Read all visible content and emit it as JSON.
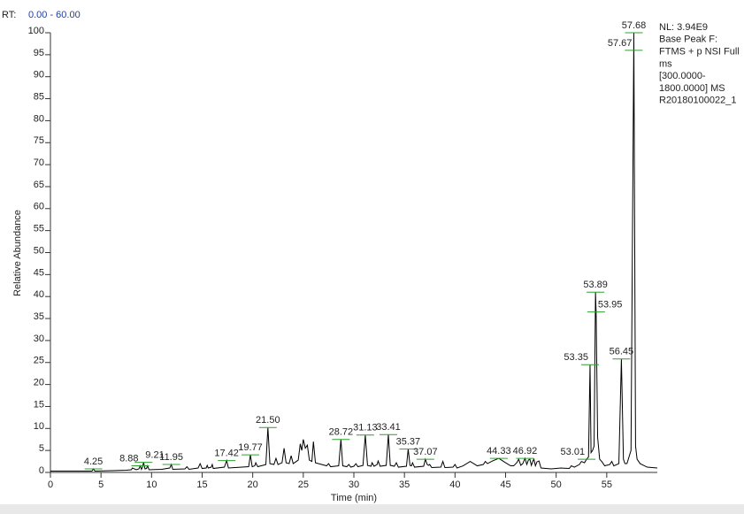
{
  "chart_data": {
    "type": "line",
    "rt_label": "RT:",
    "rt_range": "0.00 - 60.00",
    "info": [
      "NL: 3.94E9",
      "Base Peak F:",
      "FTMS + p NSI Full",
      "ms",
      "[300.0000-",
      "1800.0000]  MS",
      "R20180100022_1"
    ],
    "xlabel": "Time (min)",
    "ylabel": "Relative Abundance",
    "color": "#000000",
    "annotation_color": "#2ca02c",
    "xlim": [
      0,
      60
    ],
    "ylim": [
      0,
      100
    ],
    "xticks": [
      0,
      5,
      10,
      15,
      20,
      25,
      30,
      35,
      40,
      45,
      50,
      55
    ],
    "yticks": [
      0,
      5,
      10,
      15,
      20,
      25,
      30,
      35,
      40,
      45,
      50,
      55,
      60,
      65,
      70,
      75,
      80,
      85,
      90,
      95,
      100
    ],
    "x": [
      0,
      3,
      4.1,
      4.25,
      4.4,
      6,
      7.5,
      8.0,
      8.1,
      8.5,
      8.75,
      8.88,
      9.0,
      9.1,
      9.21,
      9.35,
      9.5,
      9.6,
      9.75,
      11,
      11.8,
      11.95,
      12.1,
      13.3,
      13.5,
      13.7,
      14.6,
      14.8,
      15.0,
      15.4,
      15.5,
      15.6,
      15.9,
      16.0,
      16.1,
      17.2,
      17.42,
      17.6,
      19.6,
      19.77,
      19.95,
      20.2,
      20.3,
      20.5,
      21.3,
      21.5,
      21.7,
      22.1,
      22.3,
      22.5,
      22.9,
      23.1,
      23.3,
      23.6,
      23.8,
      24.0,
      24.5,
      24.7,
      24.85,
      25.0,
      25.2,
      25.4,
      25.6,
      25.85,
      26.0,
      26.2,
      27.3,
      27.5,
      27.7,
      28.5,
      28.72,
      28.9,
      29.3,
      29.5,
      29.7,
      30.0,
      30.2,
      30.4,
      30.9,
      31.13,
      31.35,
      31.7,
      31.8,
      32.0,
      32.3,
      32.4,
      32.6,
      33.2,
      33.41,
      33.6,
      34.0,
      34.2,
      34.4,
      35.2,
      35.37,
      35.55,
      35.7,
      35.8,
      36,
      36.9,
      37.07,
      37.25,
      37.4,
      37.5,
      37.7,
      38.6,
      38.8,
      39.0,
      39.8,
      40.0,
      40.2,
      40.8,
      41.5,
      42.2,
      42.8,
      43.0,
      43.2,
      43.7,
      44.33,
      45.0,
      45.5,
      45.8,
      46.1,
      46.3,
      46.5,
      46.7,
      46.92,
      47.1,
      47.25,
      47.4,
      47.55,
      47.7,
      47.8,
      47.95,
      48.1,
      48.3,
      48.5,
      49.5,
      50.5,
      51.3,
      51.5,
      51.8,
      52.3,
      52.5,
      52.8,
      53.01,
      53.2,
      53.35,
      53.45,
      53.6,
      53.75,
      53.89,
      53.95,
      54.1,
      54.3,
      54.5,
      54.8,
      55.3,
      55.5,
      55.7,
      56.2,
      56.45,
      56.65,
      56.8,
      57.0,
      57.4,
      57.67,
      57.68,
      57.85,
      58.0,
      58.3,
      59.0,
      60
    ],
    "values": [
      0.3,
      0.3,
      0.3,
      0.8,
      0.3,
      0.4,
      0.5,
      0.6,
      1.0,
      0.6,
      0.8,
      1.5,
      0.7,
      1.2,
      2.3,
      0.8,
      0.9,
      1.5,
      0.6,
      0.7,
      1.0,
      1.8,
      0.7,
      0.8,
      1.3,
      0.7,
      1.0,
      2.0,
      0.9,
      1.0,
      1.6,
      1.0,
      1.2,
      1.8,
      0.9,
      1.2,
      2.7,
      1.0,
      1.3,
      4.0,
      1.3,
      1.5,
      2.2,
      1.3,
      1.8,
      10.2,
      2.0,
      1.8,
      3.2,
      1.8,
      2.2,
      5.5,
      2.2,
      2.0,
      3.8,
      2.0,
      2.8,
      6.5,
      5.0,
      7.5,
      5.5,
      6.2,
      2.8,
      2.5,
      7.0,
      2.2,
      1.5,
      2.0,
      1.3,
      1.5,
      7.5,
      1.5,
      1.3,
      1.8,
      1.2,
      1.4,
      2.0,
      1.3,
      1.6,
      8.5,
      1.6,
      1.4,
      2.2,
      1.4,
      1.8,
      2.6,
      1.4,
      1.6,
      8.6,
      1.6,
      1.4,
      2.2,
      1.2,
      1.4,
      5.3,
      1.6,
      1.5,
      2.2,
      1.2,
      1.4,
      3.0,
      1.8,
      1.6,
      1.8,
      1.1,
      1.2,
      2.5,
      1.1,
      1.2,
      1.8,
      1.0,
      1.5,
      2.5,
      1.5,
      1.8,
      2.5,
      2.0,
      2.6,
      3.2,
      2.2,
      1.5,
      1.5,
      2.2,
      3.0,
      1.6,
      2.0,
      3.2,
      1.8,
      2.8,
      3.0,
      1.6,
      2.6,
      3.0,
      1.5,
      2.4,
      2.6,
      1.0,
      0.8,
      1.0,
      0.9,
      1.5,
      1.2,
      1.8,
      2.5,
      2.2,
      3.0,
      3.5,
      24.5,
      4.5,
      5.0,
      6,
      41.0,
      36.5,
      8,
      3.0,
      2.5,
      1.5,
      1.8,
      2.5,
      1.5,
      2.0,
      25.8,
      3.0,
      2.0,
      2.0,
      5,
      96.0,
      100.0,
      6,
      3.0,
      2.0,
      1.2,
      1.0
    ],
    "annotations": [
      {
        "label": "4.25",
        "x": 4.25,
        "y": 0.8
      },
      {
        "label": "8.88",
        "x": 8.88,
        "y": 1.5
      },
      {
        "label": "9.21",
        "x": 9.21,
        "y": 2.3
      },
      {
        "label": "11.95",
        "x": 11.95,
        "y": 1.8
      },
      {
        "label": "17.42",
        "x": 17.42,
        "y": 2.7
      },
      {
        "label": "19.77",
        "x": 19.77,
        "y": 4.0
      },
      {
        "label": "21.50",
        "x": 21.5,
        "y": 10.2
      },
      {
        "label": "28.72",
        "x": 28.72,
        "y": 7.5
      },
      {
        "label": "31.13",
        "x": 31.13,
        "y": 8.5
      },
      {
        "label": "33.41",
        "x": 33.41,
        "y": 8.6
      },
      {
        "label": "35.37",
        "x": 35.37,
        "y": 5.3
      },
      {
        "label": "37.07",
        "x": 37.07,
        "y": 3.0
      },
      {
        "label": "44.33",
        "x": 44.33,
        "y": 3.2
      },
      {
        "label": "46.92",
        "x": 46.92,
        "y": 3.2
      },
      {
        "label": "53.01",
        "x": 53.01,
        "y": 3.0
      },
      {
        "label": "53.35",
        "x": 53.35,
        "y": 24.5
      },
      {
        "label": "53.89",
        "x": 53.89,
        "y": 41
      },
      {
        "label": "53.95",
        "x": 53.95,
        "y": 36.5
      },
      {
        "label": "56.45",
        "x": 56.45,
        "y": 25.8
      },
      {
        "label": "57.67",
        "x": 57.67,
        "y": 96
      },
      {
        "label": "57.68",
        "x": 57.68,
        "y": 100
      }
    ]
  }
}
